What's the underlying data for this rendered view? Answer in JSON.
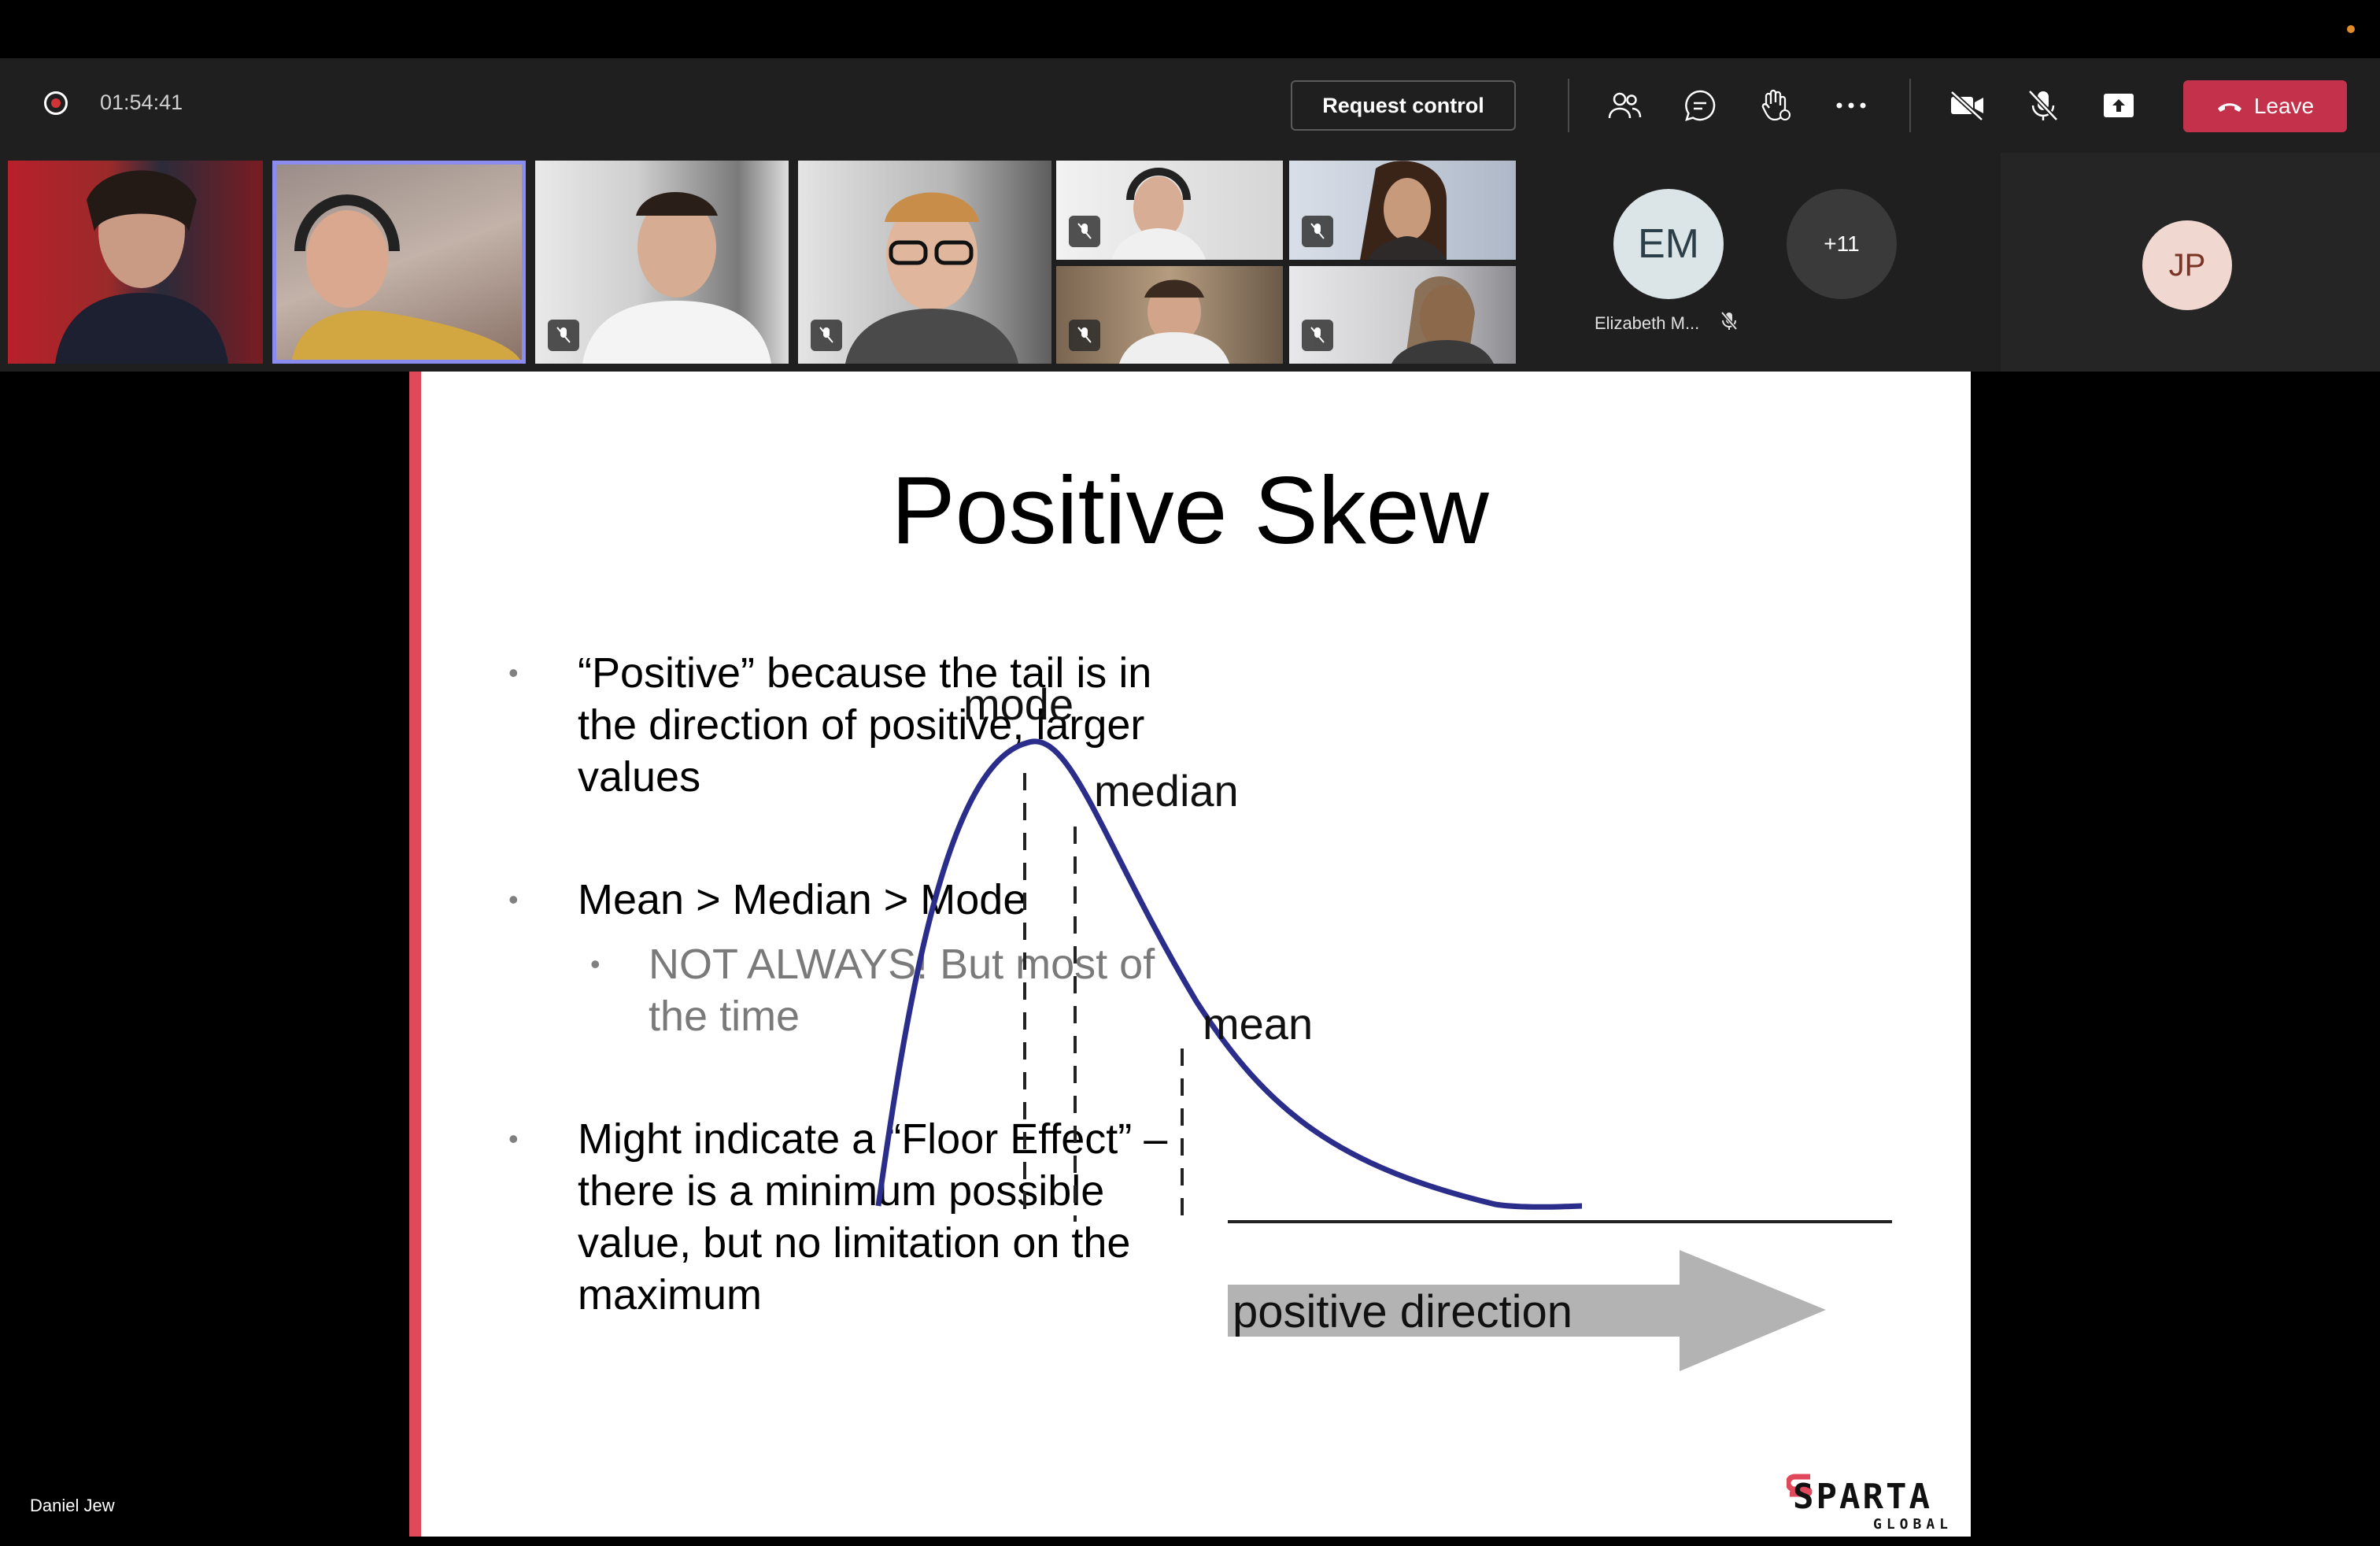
{
  "meeting": {
    "timer": "01:54:41",
    "request_control_label": "Request control",
    "leave_label": "Leave",
    "colors": {
      "leave": "#c4314b",
      "recording": "#d13438",
      "toolbar_bg": "#1f1f1f"
    }
  },
  "toolbar_icons": [
    "participants-icon",
    "chat-icon",
    "raise-hand-icon",
    "more-options-icon",
    "camera-off-icon",
    "mic-off-icon",
    "share-screen-icon"
  ],
  "participants": {
    "overflow_count": "+11",
    "em": {
      "initials": "EM",
      "name": "Elizabeth M..."
    },
    "jp": {
      "initials": "JP"
    }
  },
  "presenter_name": "Daniel Jew",
  "slide": {
    "title": "Positive Skew",
    "bullets": [
      {
        "text": "“Positive” because the tail is in the direction of positive, larger values"
      },
      {
        "text": "Mean > Median > Mode"
      },
      {
        "text": "Might indicate a “Floor Effect” – there is a minimum possible value, but no limitation on the maximum"
      }
    ],
    "sub_bullet": "NOT ALWAYS!  But most of the time",
    "chart_labels": {
      "mode": "mode",
      "median": "median",
      "mean": "mean",
      "arrow": "positive direction"
    },
    "logo": {
      "word": "SPARTA",
      "sub": "GLOBAL"
    },
    "colors": {
      "accent_bar": "#e0485b",
      "curve": "#2b2d8a",
      "arrow": "#b3b3b3"
    }
  }
}
